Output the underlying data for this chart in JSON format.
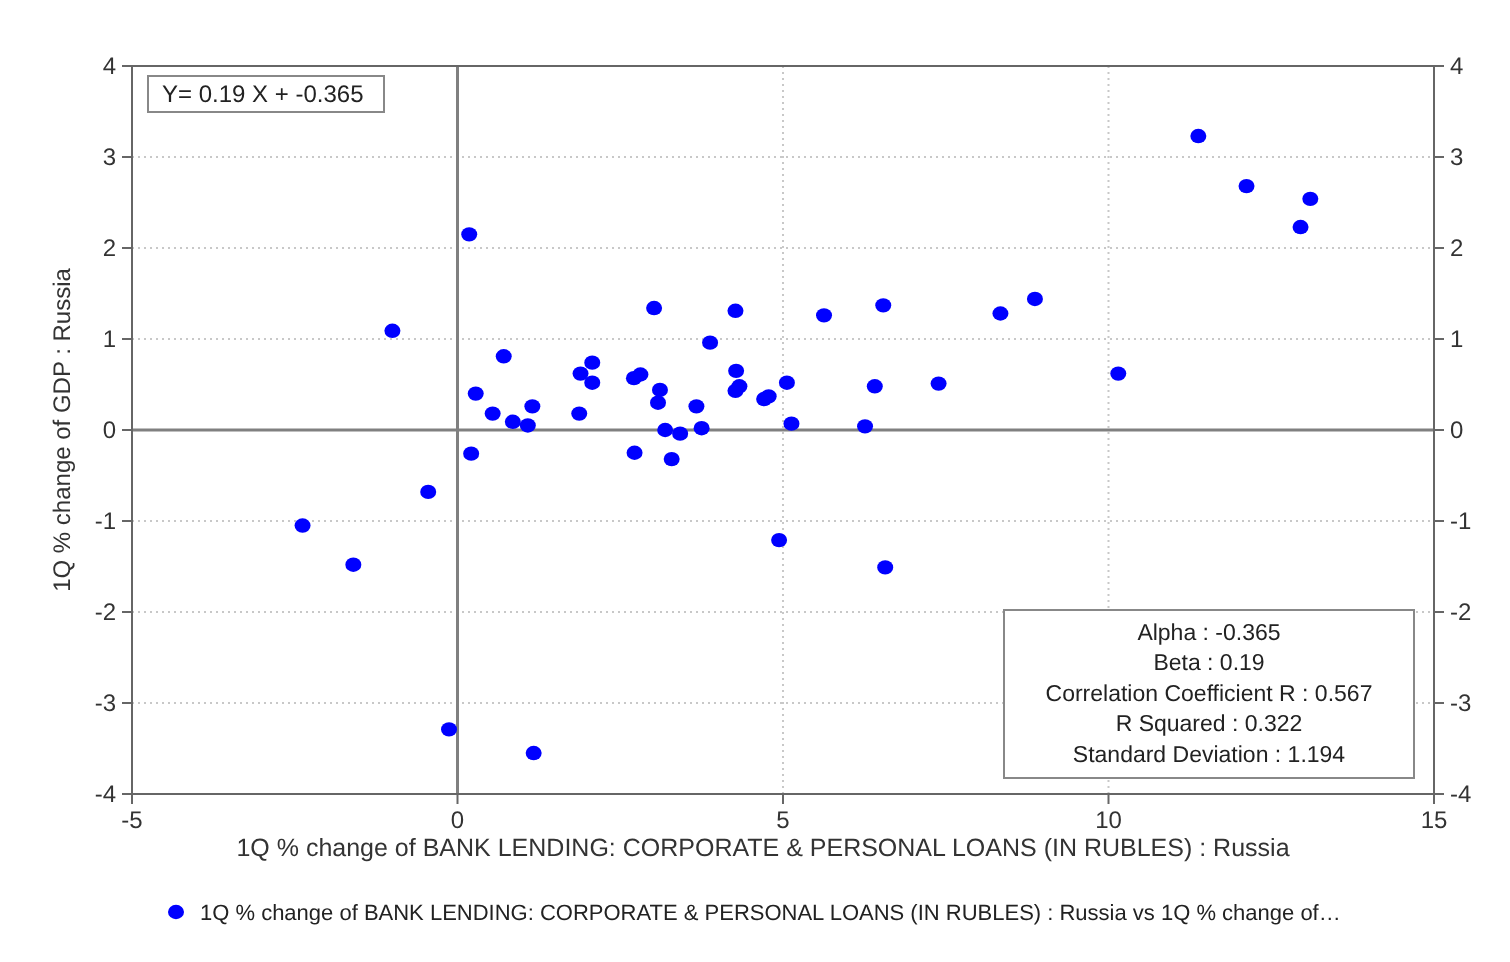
{
  "chart_data": {
    "type": "scatter",
    "xlabel": "1Q % change of BANK LENDING: CORPORATE & PERSONAL LOANS (IN RUBLES) : Russia",
    "ylabel": "1Q % change of GDP : Russia",
    "xlim": [
      -5,
      15
    ],
    "xticks": [
      -5,
      0,
      5,
      10,
      15
    ],
    "ylim": [
      -4,
      4
    ],
    "yticks": [
      -4,
      -3,
      -2,
      -1,
      0,
      1,
      2,
      3,
      4
    ],
    "y2lim": [
      -4,
      4
    ],
    "y2ticks": [
      -4,
      -3,
      -2,
      -1,
      0,
      1,
      2,
      3,
      4
    ],
    "grid": true,
    "legend": "bottom",
    "marker": "circle",
    "annotations": [
      "Y= 0.19 X + -0.365",
      "Alpha : -0.365",
      "Beta : 0.19",
      "Correlation Coefficient R : 0.567",
      "R Squared : 0.322",
      "Standard Deviation : 1.194"
    ],
    "series": [
      {
        "name": "1Q % change of BANK LENDING: CORPORATE & PERSONAL LOANS (IN RUBLES) : Russia vs 1Q % change of…",
        "color": "#0000ff",
        "x": [
          0.18,
          -1.0,
          0.71,
          0.28,
          0.54,
          0.85,
          1.08,
          1.15,
          0.21,
          -0.45,
          -2.38,
          -1.6,
          1.87,
          1.89,
          2.07,
          2.07,
          3.02,
          2.71,
          2.81,
          3.11,
          3.08,
          2.72,
          3.19,
          3.42,
          3.29,
          3.88,
          3.67,
          3.75,
          4.27,
          4.28,
          4.33,
          4.27,
          4.71,
          4.78,
          5.06,
          5.13,
          4.94,
          5.63,
          6.54,
          6.41,
          6.26,
          7.39,
          8.34,
          8.87,
          10.15,
          6.57,
          12.95,
          11.38,
          12.12,
          13.1,
          -0.13,
          1.17
        ],
        "values": [
          2.15,
          1.09,
          0.81,
          0.4,
          0.18,
          0.09,
          0.05,
          0.26,
          -0.26,
          -0.68,
          -1.05,
          -1.48,
          0.18,
          0.62,
          0.74,
          0.52,
          1.34,
          0.57,
          0.61,
          0.44,
          0.3,
          -0.25,
          0.0,
          -0.04,
          -0.32,
          0.96,
          0.26,
          0.02,
          1.31,
          0.65,
          0.48,
          0.43,
          0.34,
          0.37,
          0.52,
          0.07,
          -1.21,
          1.26,
          1.37,
          0.48,
          0.04,
          0.51,
          1.28,
          1.44,
          0.62,
          -1.51,
          2.23,
          3.23,
          2.68,
          2.54,
          -3.29,
          -3.55
        ]
      }
    ]
  }
}
